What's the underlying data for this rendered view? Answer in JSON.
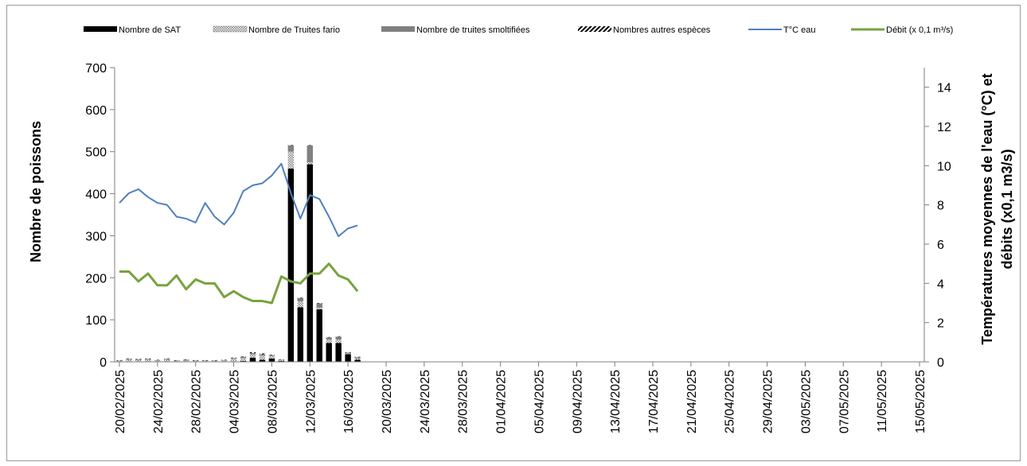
{
  "chart_data": {
    "type": "bar",
    "stacked": true,
    "title": "",
    "ylabel_left": "Nombre de poissons",
    "ylabel_right_line1": "Températures moyennes de l'eau (°C) et",
    "ylabel_right_line2": "débits (x0,1 m3/s)",
    "ylim_left": [
      0,
      700
    ],
    "yticks_left": [
      "0",
      "100",
      "200",
      "300",
      "400",
      "500",
      "600",
      "700"
    ],
    "ylim_right": [
      0,
      15
    ],
    "yticks_right": [
      "0",
      "2",
      "4",
      "6",
      "8",
      "10",
      "12",
      "14"
    ],
    "x_start": "20/02/2025",
    "x_tick_labels": [
      "20/02/2025",
      "24/02/2025",
      "28/02/2025",
      "04/03/2025",
      "08/03/2025",
      "12/03/2025",
      "16/03/2025",
      "20/03/2025",
      "24/03/2025",
      "28/03/2025",
      "01/04/2025",
      "05/04/2025",
      "09/04/2025",
      "13/04/2025",
      "17/04/2025",
      "21/04/2025",
      "25/04/2025",
      "29/04/2025",
      "03/05/2025",
      "07/05/2025",
      "11/05/2025",
      "15/05/2025"
    ],
    "x": [
      "20/02/2025",
      "21/02/2025",
      "22/02/2025",
      "23/02/2025",
      "24/02/2025",
      "25/02/2025",
      "26/02/2025",
      "27/02/2025",
      "28/02/2025",
      "01/03/2025",
      "02/03/2025",
      "03/03/2025",
      "04/03/2025",
      "05/03/2025",
      "06/03/2025",
      "07/03/2025",
      "08/03/2025",
      "09/03/2025",
      "10/03/2025",
      "11/03/2025",
      "12/03/2025",
      "13/03/2025",
      "14/03/2025",
      "15/03/2025",
      "16/03/2025",
      "17/03/2025"
    ],
    "legend_position": "top",
    "gridlines": false,
    "series": [
      {
        "name": "Nombre de SAT",
        "kind": "bar",
        "pattern": "solid-black",
        "values": [
          0,
          0,
          0,
          0,
          0,
          0,
          0,
          0,
          0,
          0,
          0,
          0,
          1,
          2,
          10,
          5,
          8,
          2,
          460,
          130,
          470,
          125,
          45,
          45,
          18,
          5
        ]
      },
      {
        "name": "Nombre de Truites fario",
        "kind": "bar",
        "pattern": "dotted",
        "values": [
          2,
          5,
          4,
          5,
          3,
          5,
          2,
          3,
          2,
          2,
          2,
          3,
          6,
          7,
          8,
          10,
          6,
          2,
          40,
          14,
          5,
          4,
          8,
          8,
          2,
          3
        ]
      },
      {
        "name": "Nombre de truites smoltifiées",
        "kind": "bar",
        "pattern": "solid-gray",
        "values": [
          1,
          2,
          2,
          2,
          1,
          2,
          1,
          2,
          1,
          1,
          1,
          1,
          2,
          3,
          3,
          3,
          2,
          1,
          15,
          8,
          40,
          10,
          5,
          7,
          2,
          3
        ]
      },
      {
        "name": "Nombres autres espèces",
        "kind": "bar",
        "pattern": "hatched",
        "values": [
          1,
          1,
          1,
          1,
          1,
          1,
          1,
          1,
          1,
          1,
          1,
          1,
          1,
          1,
          2,
          2,
          1,
          1,
          1,
          1,
          1,
          1,
          1,
          1,
          1,
          1
        ]
      },
      {
        "name": "T°C eau",
        "kind": "line",
        "color": "#4f81bd",
        "axis": "right",
        "values": [
          8.1,
          8.6,
          8.8,
          8.4,
          8.1,
          8.0,
          7.4,
          7.3,
          7.1,
          8.1,
          7.4,
          7.0,
          7.6,
          8.7,
          9.0,
          9.1,
          9.5,
          10.1,
          8.6,
          7.3,
          8.5,
          8.3,
          7.4,
          6.4,
          6.8,
          6.95
        ]
      },
      {
        "name": "Débit (x 0,1 m³/s)",
        "kind": "line",
        "color": "#77a33f",
        "axis": "right",
        "values": [
          4.6,
          4.6,
          4.1,
          4.5,
          3.9,
          3.9,
          4.4,
          3.7,
          4.2,
          4.0,
          4.0,
          3.3,
          3.6,
          3.3,
          3.1,
          3.1,
          3.0,
          4.35,
          4.1,
          4.0,
          4.5,
          4.5,
          5.0,
          4.4,
          4.2,
          3.6
        ]
      }
    ]
  }
}
